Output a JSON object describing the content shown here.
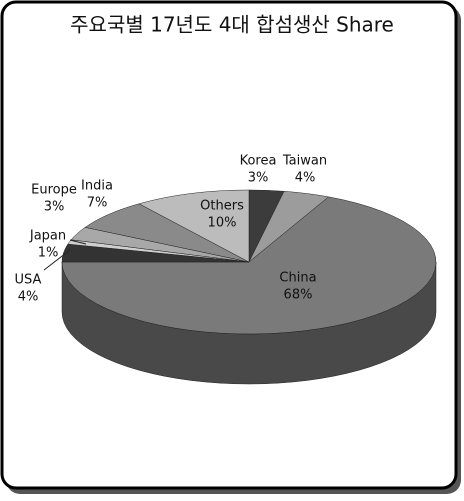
{
  "chart_data": {
    "type": "pie3d",
    "title": "주요국별 17년도 4대 합섬생산 Share",
    "categories": [
      "Korea",
      "Taiwan",
      "China",
      "USA",
      "Japan",
      "Europe",
      "India",
      "Others"
    ],
    "values": [
      3,
      4,
      68,
      4,
      1,
      3,
      7,
      10
    ],
    "value_labels": [
      "3%",
      "4%",
      "68%",
      "4%",
      "1%",
      "3%",
      "7%",
      "10%"
    ],
    "colors": [
      "#3c3c3c",
      "#9c9c9c",
      "#7a7a7a",
      "#333333",
      "#cfcfcf",
      "#a8a8a8",
      "#8a8a8a",
      "#bcbcbc"
    ]
  }
}
